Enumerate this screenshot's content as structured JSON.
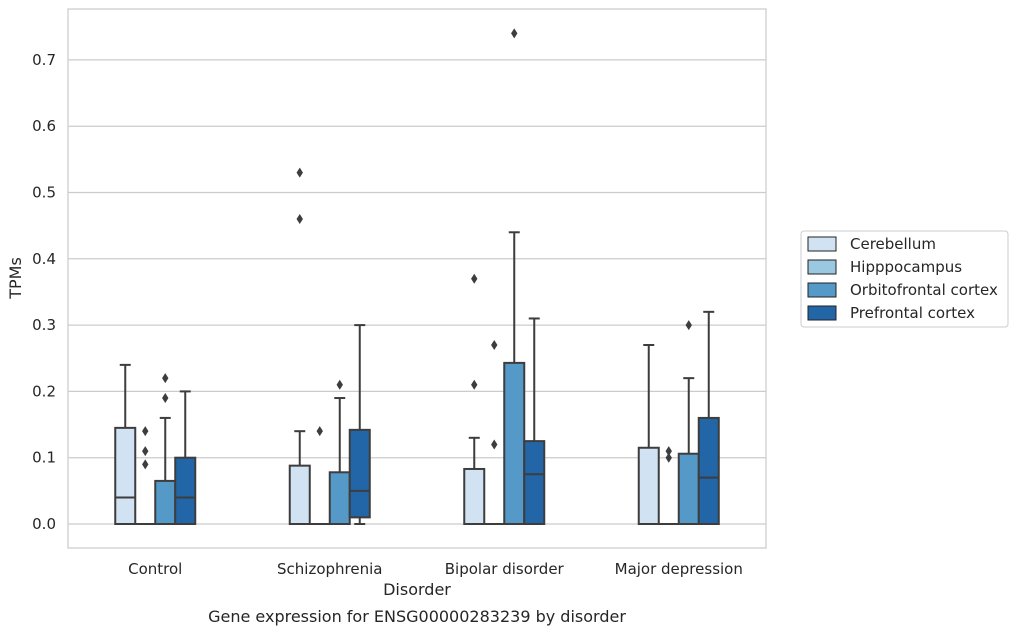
{
  "chart_data": {
    "type": "box",
    "xlabel": "Disorder",
    "ylabel": "TPMs",
    "caption": "Gene expression for ENSG00000283239 by disorder",
    "ylim": [
      -0.035,
      0.775
    ],
    "yticks": [
      "0.0",
      "0.1",
      "0.2",
      "0.3",
      "0.4",
      "0.5",
      "0.6",
      "0.7"
    ],
    "grid": "horizontal",
    "legend_position": "right",
    "categories": [
      "Control",
      "Schizophrenia",
      "Bipolar disorder",
      "Major depression"
    ],
    "series": [
      {
        "name": "Cerebellum",
        "color": "#d1e2f2",
        "boxes": [
          {
            "q1": 0.0,
            "median": 0.04,
            "q3": 0.145,
            "whisker_low": 0.0,
            "whisker_high": 0.24,
            "outliers": []
          },
          {
            "q1": 0.0,
            "median": 0.0,
            "q3": 0.088,
            "whisker_low": 0.0,
            "whisker_high": 0.14,
            "outliers": [
              0.46,
              0.53
            ]
          },
          {
            "q1": 0.0,
            "median": 0.0,
            "q3": 0.083,
            "whisker_low": 0.0,
            "whisker_high": 0.13,
            "outliers": [
              0.21,
              0.37
            ]
          },
          {
            "q1": 0.0,
            "median": 0.0,
            "q3": 0.115,
            "whisker_low": 0.0,
            "whisker_high": 0.27,
            "outliers": []
          }
        ]
      },
      {
        "name": "Hipppocampus",
        "color": "#9ac8e0",
        "boxes": [
          {
            "q1": 0.0,
            "median": 0.0,
            "q3": 0.0,
            "whisker_low": 0.0,
            "whisker_high": 0.0,
            "outliers": [
              0.09,
              0.11,
              0.14
            ]
          },
          {
            "q1": 0.0,
            "median": 0.0,
            "q3": 0.0,
            "whisker_low": 0.0,
            "whisker_high": 0.0,
            "outliers": [
              0.14
            ]
          },
          {
            "q1": 0.0,
            "median": 0.0,
            "q3": 0.0,
            "whisker_low": 0.0,
            "whisker_high": 0.0,
            "outliers": [
              0.12,
              0.27
            ]
          },
          {
            "q1": 0.0,
            "median": 0.0,
            "q3": 0.0,
            "whisker_low": 0.0,
            "whisker_high": 0.0,
            "outliers": [
              0.1,
              0.11
            ]
          }
        ]
      },
      {
        "name": "Orbitofrontal cortex",
        "color": "#5499c8",
        "boxes": [
          {
            "q1": 0.0,
            "median": 0.0,
            "q3": 0.065,
            "whisker_low": 0.0,
            "whisker_high": 0.16,
            "outliers": [
              0.19,
              0.22
            ]
          },
          {
            "q1": 0.0,
            "median": 0.0,
            "q3": 0.078,
            "whisker_low": 0.0,
            "whisker_high": 0.19,
            "outliers": [
              0.21
            ]
          },
          {
            "q1": 0.0,
            "median": 0.0,
            "q3": 0.243,
            "whisker_low": 0.0,
            "whisker_high": 0.44,
            "outliers": [
              0.74
            ]
          },
          {
            "q1": 0.0,
            "median": 0.0,
            "q3": 0.106,
            "whisker_low": 0.0,
            "whisker_high": 0.22,
            "outliers": [
              0.3
            ]
          }
        ]
      },
      {
        "name": "Prefrontal cortex",
        "color": "#2266a8",
        "boxes": [
          {
            "q1": 0.0,
            "median": 0.04,
            "q3": 0.1,
            "whisker_low": 0.0,
            "whisker_high": 0.2,
            "outliers": []
          },
          {
            "q1": 0.01,
            "median": 0.05,
            "q3": 0.142,
            "whisker_low": 0.0,
            "whisker_high": 0.3,
            "outliers": []
          },
          {
            "q1": 0.0,
            "median": 0.075,
            "q3": 0.125,
            "whisker_low": 0.0,
            "whisker_high": 0.31,
            "outliers": []
          },
          {
            "q1": 0.0,
            "median": 0.07,
            "q3": 0.16,
            "whisker_low": 0.0,
            "whisker_high": 0.32,
            "outliers": []
          }
        ]
      }
    ]
  }
}
